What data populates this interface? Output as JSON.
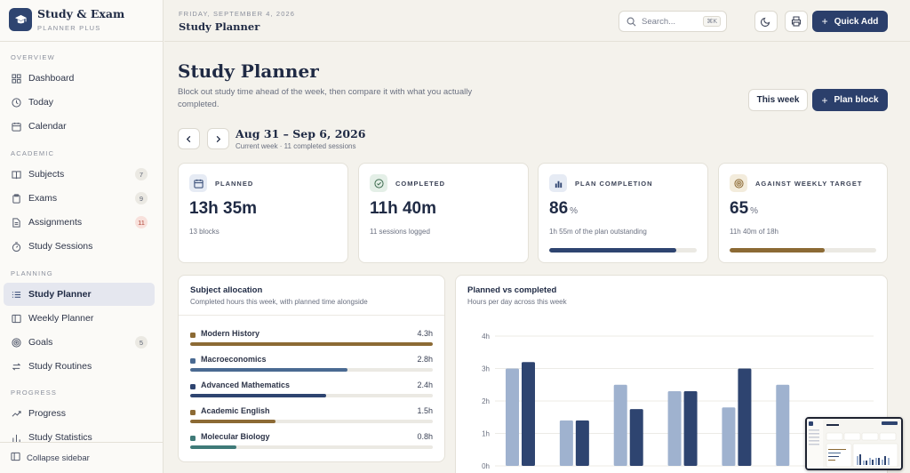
{
  "brand": {
    "title": "Study & Exam",
    "subtitle": "PLANNER PLUS"
  },
  "sidebar": {
    "sections": [
      {
        "label": "OVERVIEW"
      },
      {
        "label": "ACADEMIC"
      },
      {
        "label": "PLANNING"
      },
      {
        "label": "PROGRESS"
      }
    ],
    "items": [
      {
        "label": "Dashboard",
        "icon": "grid-icon"
      },
      {
        "label": "Today",
        "icon": "clock-icon"
      },
      {
        "label": "Calendar",
        "icon": "calendar-icon"
      },
      {
        "label": "Subjects",
        "icon": "book-icon",
        "badge": "7"
      },
      {
        "label": "Exams",
        "icon": "clipboard-icon",
        "badge": "9"
      },
      {
        "label": "Assignments",
        "icon": "file-icon",
        "badge": "11"
      },
      {
        "label": "Study Sessions",
        "icon": "timer-icon"
      },
      {
        "label": "Study Planner",
        "icon": "list-icon"
      },
      {
        "label": "Weekly Planner",
        "icon": "columns-icon"
      },
      {
        "label": "Goals",
        "icon": "target-icon",
        "badge": "5"
      },
      {
        "label": "Study Routines",
        "icon": "repeat-icon"
      },
      {
        "label": "Progress",
        "icon": "trend-icon"
      },
      {
        "label": "Study Statistics",
        "icon": "stats-icon"
      }
    ],
    "collapse_label": "Collapse sidebar"
  },
  "topbar": {
    "date": "FRIDAY, SEPTEMBER 4, 2026",
    "title": "Study Planner",
    "search_placeholder": "Search...",
    "search_shortcut": "⌘K",
    "quick_add_label": "Quick Add"
  },
  "page": {
    "title": "Study Planner",
    "description": "Block out study time ahead of the week, then compare it with what you actually completed.",
    "this_week_label": "This week",
    "plan_block_label": "Plan block",
    "week_range": "Aug 31 – Sep 6, 2026",
    "week_sub": "Current week · 11 completed sessions"
  },
  "stats": [
    {
      "label": "PLANNED",
      "value": "13h 35m",
      "unit": "",
      "note": "13 blocks",
      "icon": "calendar-icon",
      "icon_bg": "#e6ebf4",
      "icon_color": "#2e4470"
    },
    {
      "label": "COMPLETED",
      "value": "11h 40m",
      "unit": "",
      "note": "11 sessions logged",
      "icon": "check-circle-icon",
      "icon_bg": "#e4efe7",
      "icon_color": "#3d6b4f"
    },
    {
      "label": "PLAN COMPLETION",
      "value": "86",
      "unit": "%",
      "note": "1h 55m of the plan outstanding",
      "icon": "bar-chart-icon",
      "icon_bg": "#e6ebf4",
      "icon_color": "#2e4470",
      "progress": 0.86,
      "bar_color": "#2e4470"
    },
    {
      "label": "AGAINST WEEKLY TARGET",
      "value": "65",
      "unit": "%",
      "note": "11h 40m of 18h",
      "icon": "target-icon",
      "icon_bg": "#f3ecdc",
      "icon_color": "#8c6a34",
      "progress": 0.65,
      "bar_color": "#8c6a34"
    }
  ],
  "allocation": {
    "title": "Subject allocation",
    "subtitle": "Completed hours this week, with planned time alongside",
    "subjects": [
      {
        "name": "Modern History",
        "hours": "4.3h",
        "fraction": 1.0,
        "color": "#8c6a34"
      },
      {
        "name": "Macroeconomics",
        "hours": "2.8h",
        "fraction": 0.65,
        "color": "#4a6a92"
      },
      {
        "name": "Advanced Mathematics",
        "hours": "2.4h",
        "fraction": 0.56,
        "color": "#2e4470"
      },
      {
        "name": "Academic English",
        "hours": "1.5h",
        "fraction": 0.35,
        "color": "#8c6a34"
      },
      {
        "name": "Molecular Biology",
        "hours": "0.8h",
        "fraction": 0.19,
        "color": "#3f7a78"
      }
    ]
  },
  "planned_vs_completed": {
    "title": "Planned vs completed",
    "subtitle": "Hours per day across this week"
  },
  "chart_data": {
    "type": "bar",
    "categories": [
      "",
      "",
      "",
      "",
      "",
      "",
      ""
    ],
    "series": [
      {
        "values": [
          3.0,
          1.4,
          2.5,
          2.3,
          1.8,
          2.5,
          null
        ],
        "color": "#9fb2cf"
      },
      {
        "values": [
          3.2,
          1.4,
          1.75,
          2.3,
          3.0,
          null,
          null
        ],
        "color": "#2e4470"
      }
    ],
    "ylim": [
      0,
      4
    ],
    "yticks": [
      "0h",
      "1h",
      "2h",
      "3h",
      "4h"
    ],
    "grid": true
  }
}
